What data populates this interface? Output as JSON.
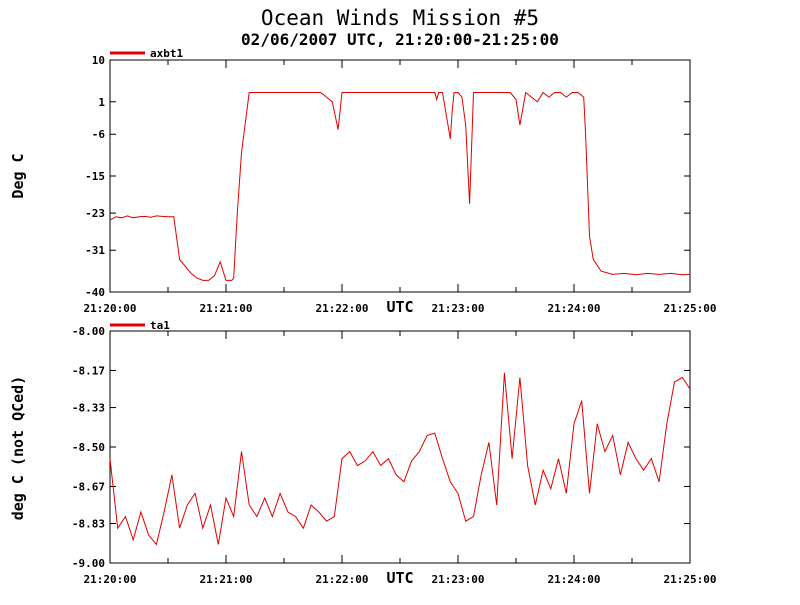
{
  "title": "Ocean Winds Mission #5",
  "subtitle": "02/06/2007  UTC, 21:20:00-21:25:00",
  "colors": {
    "series": "#e00000",
    "axis": "#000000",
    "background": "#ffffff"
  },
  "chart_data": [
    {
      "type": "line",
      "xlabel": "UTC",
      "ylabel": "Deg C",
      "legend": "top-left",
      "grid": false,
      "xlim": [
        "21:20:00",
        "21:25:00"
      ],
      "ylim": [
        -40,
        10
      ],
      "x_ticks": [
        "21:20:00",
        "21:21:00",
        "21:22:00",
        "21:23:00",
        "21:24:00",
        "21:25:00"
      ],
      "y_ticks": [
        "10",
        "1",
        "-6",
        "-15",
        "-23",
        "-31",
        "-40"
      ],
      "series": [
        {
          "name": "axbt1",
          "x": [
            "21:20:00",
            "21:20:03",
            "21:20:06",
            "21:20:09",
            "21:20:12",
            "21:20:15",
            "21:20:18",
            "21:20:21",
            "21:20:24",
            "21:20:27",
            "21:20:30",
            "21:20:33",
            "21:20:36",
            "21:20:39",
            "21:20:42",
            "21:20:45",
            "21:20:48",
            "21:20:51",
            "21:20:54",
            "21:20:57",
            "21:21:00",
            "21:21:03",
            "21:21:04",
            "21:21:05",
            "21:21:06",
            "21:21:08",
            "21:21:12",
            "21:21:18",
            "21:21:24",
            "21:21:30",
            "21:21:36",
            "21:21:42",
            "21:21:46",
            "21:21:49",
            "21:21:52",
            "21:21:55",
            "21:21:58",
            "21:22:00",
            "21:22:06",
            "21:22:12",
            "21:22:18",
            "21:22:24",
            "21:22:30",
            "21:22:36",
            "21:22:42",
            "21:22:48",
            "21:22:49",
            "21:22:50",
            "21:22:52",
            "21:22:56",
            "21:22:57",
            "21:22:58",
            "21:23:00",
            "21:23:02",
            "21:23:04",
            "21:23:06",
            "21:23:08",
            "21:23:12",
            "21:23:18",
            "21:23:24",
            "21:23:27",
            "21:23:30",
            "21:23:32",
            "21:23:35",
            "21:23:38",
            "21:23:41",
            "21:23:44",
            "21:23:47",
            "21:23:50",
            "21:23:53",
            "21:23:56",
            "21:23:59",
            "21:24:02",
            "21:24:05",
            "21:24:06",
            "21:24:08",
            "21:24:10",
            "21:24:14",
            "21:24:20",
            "21:24:26",
            "21:24:32",
            "21:24:38",
            "21:24:44",
            "21:24:50",
            "21:24:56",
            "21:25:00"
          ],
          "y": [
            -24.5,
            -23.8,
            -24.0,
            -23.6,
            -24.0,
            -23.8,
            -23.7,
            -23.9,
            -23.6,
            -23.7,
            -23.8,
            -23.8,
            -33,
            -34.5,
            -36,
            -37,
            -37.5,
            -37.5,
            -36.5,
            -33.5,
            -37.5,
            -37.5,
            -37,
            -29,
            -22,
            -10,
            3,
            3,
            3,
            3,
            3,
            3,
            3,
            3,
            2,
            1,
            -5,
            3,
            3,
            3,
            3,
            3,
            3,
            3,
            3,
            3,
            1.5,
            3,
            3,
            -7,
            -1,
            3,
            3,
            2,
            -4,
            -21,
            3,
            3,
            3,
            3,
            3,
            1.5,
            -4,
            3,
            2,
            1,
            3,
            2,
            3,
            3,
            2,
            3,
            3,
            2,
            -6,
            -28,
            -33,
            -35.5,
            -36.2,
            -36.0,
            -36.3,
            -36.0,
            -36.2,
            -36.0,
            -36.3,
            -36.2
          ]
        }
      ]
    },
    {
      "type": "line",
      "xlabel": "UTC",
      "ylabel": "deg C (not QCed)",
      "legend": "top-left",
      "grid": false,
      "xlim": [
        "21:20:00",
        "21:25:00"
      ],
      "ylim": [
        -9.0,
        -8.0
      ],
      "x_ticks": [
        "21:20:00",
        "21:21:00",
        "21:22:00",
        "21:23:00",
        "21:24:00",
        "21:25:00"
      ],
      "y_ticks": [
        "-8.00",
        "-8.17",
        "-8.33",
        "-8.50",
        "-8.67",
        "-8.83",
        "-9.00"
      ],
      "series": [
        {
          "name": "ta1",
          "x": [
            "21:20:00",
            "21:20:04",
            "21:20:08",
            "21:20:12",
            "21:20:16",
            "21:20:20",
            "21:20:24",
            "21:20:28",
            "21:20:32",
            "21:20:36",
            "21:20:40",
            "21:20:44",
            "21:20:48",
            "21:20:52",
            "21:20:56",
            "21:21:00",
            "21:21:04",
            "21:21:08",
            "21:21:12",
            "21:21:16",
            "21:21:20",
            "21:21:24",
            "21:21:28",
            "21:21:32",
            "21:21:36",
            "21:21:40",
            "21:21:44",
            "21:21:48",
            "21:21:52",
            "21:21:56",
            "21:22:00",
            "21:22:04",
            "21:22:08",
            "21:22:12",
            "21:22:16",
            "21:22:20",
            "21:22:24",
            "21:22:28",
            "21:22:32",
            "21:22:36",
            "21:22:40",
            "21:22:44",
            "21:22:48",
            "21:22:52",
            "21:22:56",
            "21:23:00",
            "21:23:04",
            "21:23:08",
            "21:23:12",
            "21:23:16",
            "21:23:20",
            "21:23:24",
            "21:23:28",
            "21:23:32",
            "21:23:36",
            "21:23:40",
            "21:23:44",
            "21:23:48",
            "21:23:52",
            "21:23:56",
            "21:24:00",
            "21:24:04",
            "21:24:08",
            "21:24:12",
            "21:24:16",
            "21:24:20",
            "21:24:24",
            "21:24:28",
            "21:24:32",
            "21:24:36",
            "21:24:40",
            "21:24:44",
            "21:24:48",
            "21:24:52",
            "21:24:56",
            "21:25:00"
          ],
          "y": [
            -8.55,
            -8.85,
            -8.8,
            -8.9,
            -8.78,
            -8.88,
            -8.92,
            -8.78,
            -8.62,
            -8.85,
            -8.75,
            -8.7,
            -8.85,
            -8.75,
            -8.92,
            -8.72,
            -8.8,
            -8.52,
            -8.75,
            -8.8,
            -8.72,
            -8.8,
            -8.7,
            -8.78,
            -8.8,
            -8.85,
            -8.75,
            -8.78,
            -8.82,
            -8.8,
            -8.55,
            -8.52,
            -8.58,
            -8.56,
            -8.52,
            -8.58,
            -8.55,
            -8.62,
            -8.65,
            -8.56,
            -8.52,
            -8.45,
            -8.44,
            -8.55,
            -8.65,
            -8.7,
            -8.82,
            -8.8,
            -8.62,
            -8.48,
            -8.75,
            -8.18,
            -8.55,
            -8.2,
            -8.58,
            -8.75,
            -8.6,
            -8.68,
            -8.55,
            -8.7,
            -8.4,
            -8.3,
            -8.7,
            -8.4,
            -8.52,
            -8.45,
            -8.62,
            -8.48,
            -8.55,
            -8.6,
            -8.55,
            -8.65,
            -8.4,
            -8.22,
            -8.2,
            -8.25
          ]
        }
      ]
    }
  ]
}
